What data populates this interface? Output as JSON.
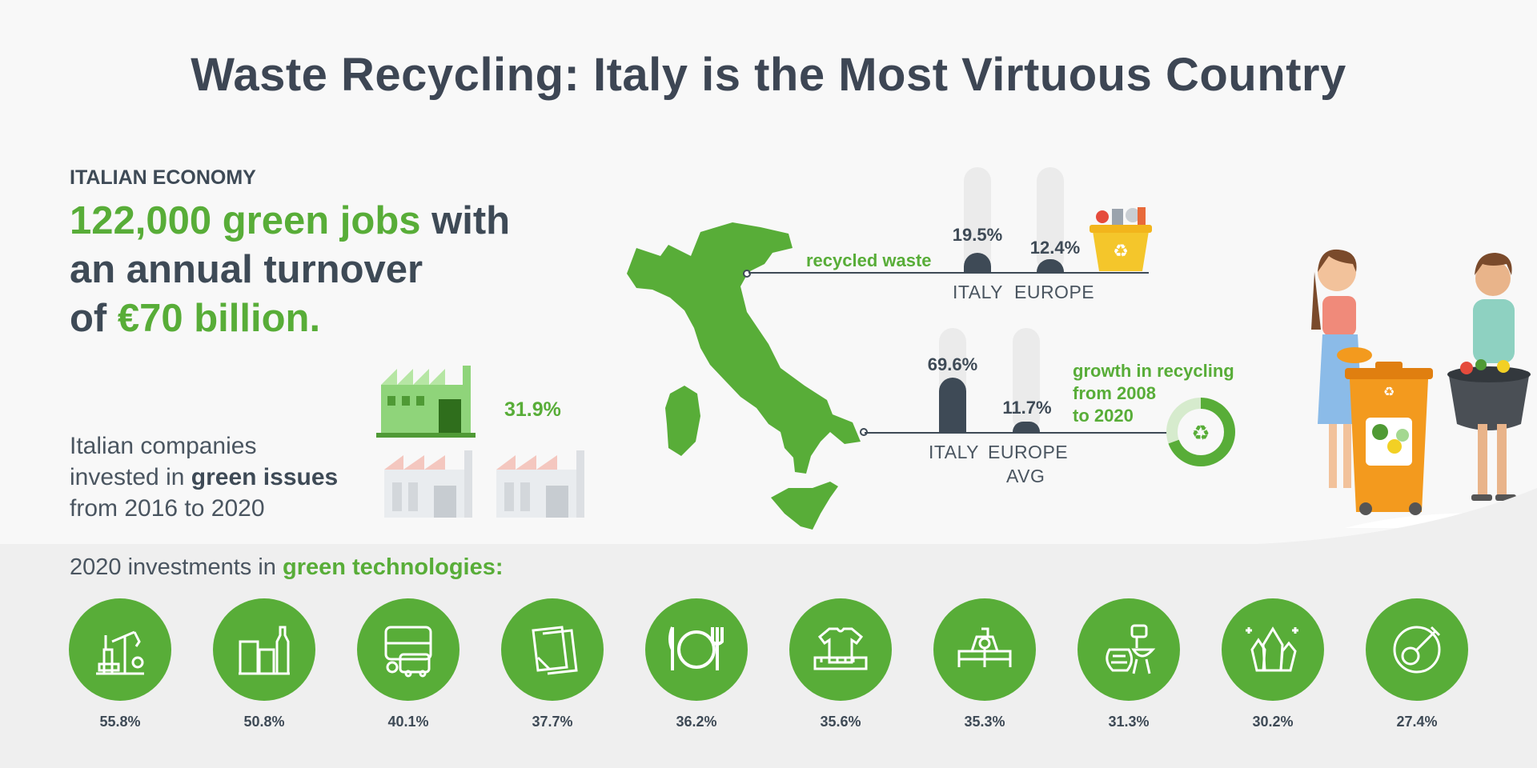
{
  "title": "Waste Recycling: Italy is the Most Virtuous Country",
  "economy": {
    "label": "ITALIAN ECONOMY",
    "headline_1": "122,000 green jobs",
    "headline_2": " with",
    "headline_3": "an annual turnover",
    "headline_4": "of ",
    "headline_5": "€70 billion."
  },
  "companies": {
    "text_1": "Italian companies",
    "text_2": "invested in ",
    "text_3": "green issues",
    "text_4": "from 2016 to 2020",
    "percent": "31.9%"
  },
  "recycled_waste": {
    "label": "recycled waste",
    "italy_value": "19.5%",
    "europe_value": "12.4%",
    "italy_label": "ITALY",
    "europe_label": "EUROPE"
  },
  "growth": {
    "label_1": "growth in recycling",
    "label_2": "from 2008",
    "label_3": "to 2020",
    "italy_value": "69.6%",
    "europe_value": "11.7%",
    "italy_label": "ITALY",
    "europe_label_1": "EUROPE",
    "europe_label_2": "AVG"
  },
  "investments": {
    "title_1": "2020 investments in ",
    "title_2": "green technologies:",
    "items": [
      {
        "icon": "oil-pump-icon",
        "value": "55.8%"
      },
      {
        "icon": "bottles-icon",
        "value": "50.8%"
      },
      {
        "icon": "vehicles-icon",
        "value": "40.1%"
      },
      {
        "icon": "paper-icon",
        "value": "37.7%"
      },
      {
        "icon": "plate-cutlery-icon",
        "value": "36.2%"
      },
      {
        "icon": "textile-icon",
        "value": "35.6%"
      },
      {
        "icon": "machinery-icon",
        "value": "35.3%"
      },
      {
        "icon": "pottery-grill-icon",
        "value": "31.3%"
      },
      {
        "icon": "crystals-icon",
        "value": "30.2%"
      },
      {
        "icon": "music-instruments-icon",
        "value": "27.4%"
      }
    ]
  },
  "colors": {
    "green": "#58ad38",
    "dark": "#3e4a56",
    "light_green": "#cfe6c3",
    "orange": "#f39a1e",
    "yellow": "#f4c62b"
  }
}
